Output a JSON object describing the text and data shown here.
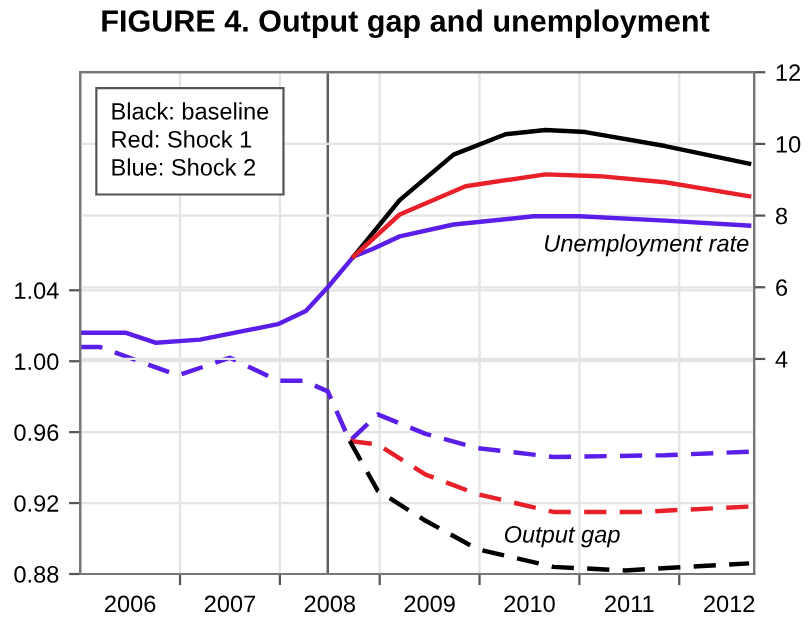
{
  "chart_data": {
    "type": "line",
    "title": "FIGURE 4. Output gap and unemployment",
    "xlim": [
      2006,
      2012.75
    ],
    "xticks": [
      {
        "value": 2006.5,
        "label": "2006"
      },
      {
        "value": 2007,
        "label": null
      },
      {
        "value": 2007.5,
        "label": "2007"
      },
      {
        "value": 2008,
        "label": null
      },
      {
        "value": 2008.5,
        "label": "2008"
      },
      {
        "value": 2009,
        "label": null
      },
      {
        "value": 2009.5,
        "label": "2009"
      },
      {
        "value": 2010,
        "label": null
      },
      {
        "value": 2010.5,
        "label": "2010"
      },
      {
        "value": 2011,
        "label": null
      },
      {
        "value": 2011.5,
        "label": "2011"
      },
      {
        "value": 2012,
        "label": null
      },
      {
        "value": 2012.5,
        "label": "2012"
      }
    ],
    "ylim": [
      0.88,
      1.163
    ],
    "yticks": [
      {
        "value": 0.88,
        "label": "0.88"
      },
      {
        "value": 0.92,
        "label": "0.92"
      },
      {
        "value": 0.96,
        "label": "0.96"
      },
      {
        "value": 1.0,
        "label": "1.00"
      },
      {
        "value": 1.04,
        "label": "1.04"
      }
    ],
    "y2lim": [
      -2,
      12
    ],
    "y2ticks": [
      4,
      6,
      8,
      10,
      12
    ],
    "grid": true,
    "ref_lines": [
      {
        "axis": "x",
        "value": 2008.48,
        "color": "#606060"
      }
    ],
    "series": [
      {
        "color": "#5a1ee8",
        "axis": "y2",
        "line_style": "solid",
        "x": [
          2006.0,
          2006.46,
          2006.76,
          2007.2,
          2007.98,
          2008.26,
          2008.48,
          2008.74,
          2008.94,
          2009.2,
          2009.74,
          2010.54,
          2011.0,
          2011.86,
          2012.7
        ],
        "values": [
          4.73,
          4.73,
          4.45,
          4.54,
          4.97,
          5.34,
          6.0,
          6.86,
          7.08,
          7.42,
          7.75,
          7.98,
          7.98,
          7.86,
          7.72
        ]
      },
      {
        "color": "#000000",
        "axis": "y2",
        "line_style": "solid",
        "x": [
          2008.74,
          2009.2,
          2009.74,
          2010.26,
          2010.66,
          2011.06,
          2011.86,
          2012.7
        ],
        "values": [
          6.86,
          8.43,
          9.7,
          10.27,
          10.39,
          10.33,
          9.94,
          9.45
        ]
      },
      {
        "color": "#e8202a",
        "axis": "y2",
        "line_style": "solid",
        "x": [
          2008.74,
          2009.2,
          2009.86,
          2010.66,
          2011.2,
          2011.86,
          2012.7
        ],
        "values": [
          6.86,
          8.03,
          8.82,
          9.15,
          9.1,
          8.93,
          8.54
        ]
      },
      {
        "color": "#5a1ee8",
        "axis": "y",
        "line_style": "dashed",
        "x": [
          2006.0,
          2006.2,
          2006.98,
          2007.5,
          2007.98,
          2008.24,
          2008.48,
          2008.7,
          2008.98,
          2009.46,
          2009.98,
          2010.74,
          2011.86,
          2012.7
        ],
        "values": [
          1.008,
          1.008,
          0.992,
          1.002,
          0.989,
          0.989,
          0.983,
          0.955,
          0.97,
          0.959,
          0.951,
          0.946,
          0.947,
          0.949
        ]
      },
      {
        "color": "#e8202a",
        "axis": "y",
        "line_style": "dashed",
        "x": [
          2008.7,
          2008.98,
          2009.46,
          2009.98,
          2010.74,
          2011.6,
          2012.7
        ],
        "values": [
          0.955,
          0.953,
          0.936,
          0.925,
          0.915,
          0.915,
          0.918
        ]
      },
      {
        "color": "#000000",
        "axis": "y",
        "line_style": "dashed",
        "x": [
          2008.7,
          2008.98,
          2009.46,
          2009.98,
          2010.74,
          2011.46,
          2012.7
        ],
        "values": [
          0.955,
          0.927,
          0.91,
          0.894,
          0.884,
          0.882,
          0.886
        ]
      }
    ],
    "annotations": [
      "Black: baseline\nRed: Shock 1\nBlue: Shock 2",
      "Unemployment rate",
      "Output gap"
    ]
  }
}
